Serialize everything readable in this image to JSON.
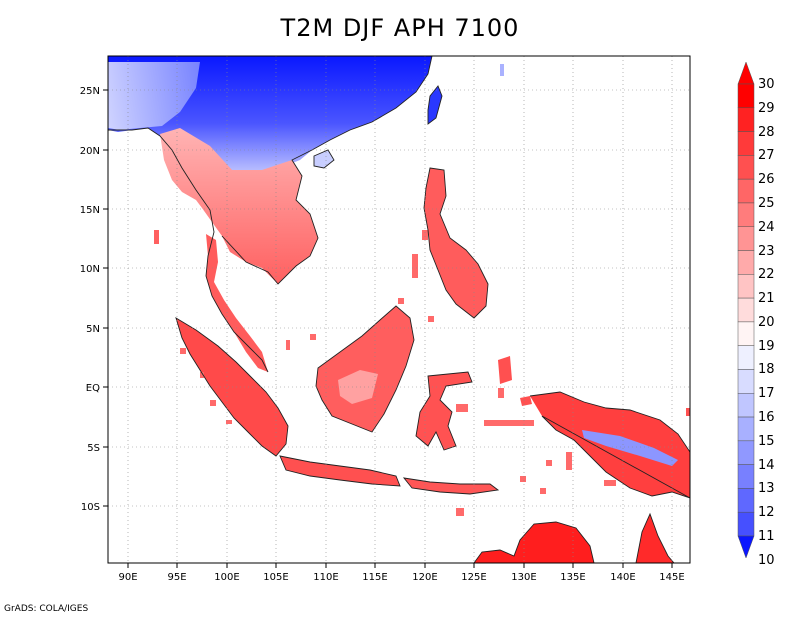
{
  "title": "T2M DJF APH 7100",
  "credit": "GrADS: COLA/IGES",
  "lon_ticks": [
    "90E",
    "95E",
    "100E",
    "105E",
    "110E",
    "115E",
    "120E",
    "125E",
    "130E",
    "135E",
    "140E",
    "145E"
  ],
  "lat_ticks": [
    "25N",
    "20N",
    "15N",
    "10N",
    "5N",
    "EQ",
    "5S",
    "10S"
  ],
  "colorbar": {
    "levels": [
      "30",
      "29",
      "28",
      "27",
      "26",
      "25",
      "24",
      "23",
      "22",
      "21",
      "20",
      "19",
      "18",
      "17",
      "16",
      "15",
      "14",
      "13",
      "12",
      "11",
      "10"
    ],
    "colors": [
      "#ff0000",
      "#ff2222",
      "#ff3a3a",
      "#ff5050",
      "#ff6666",
      "#ff7c7c",
      "#ff9494",
      "#ffaaaa",
      "#ffc4c4",
      "#ffdcdc",
      "#fff4f4",
      "#eef0ff",
      "#d8dcff",
      "#c0c6ff",
      "#a8b0ff",
      "#9098ff",
      "#7880ff",
      "#5f68ff",
      "#4650ff",
      "#2c36ff",
      "#0b16ff"
    ]
  },
  "regions": [
    {
      "name": "south-china-cold",
      "color": "#1f2dff"
    },
    {
      "name": "indochina-north",
      "color": "#9ea8ff"
    },
    {
      "name": "indochina",
      "color": "#ff8c8c"
    },
    {
      "name": "malay-peninsula",
      "color": "#ff5a5a"
    },
    {
      "name": "sumatra",
      "color": "#ff4646"
    },
    {
      "name": "java",
      "color": "#ff4a4a"
    },
    {
      "name": "borneo",
      "color": "#ff5c5c"
    },
    {
      "name": "sulawesi",
      "color": "#ff4e4e"
    },
    {
      "name": "philippines",
      "color": "#ff5c5c"
    },
    {
      "name": "new-guinea",
      "color": "#ff3c3c"
    },
    {
      "name": "australia-north",
      "color": "#ff1a1a"
    },
    {
      "name": "taiwan",
      "color": "#3b48ff"
    },
    {
      "name": "hainan",
      "color": "#c8ceff"
    }
  ]
}
